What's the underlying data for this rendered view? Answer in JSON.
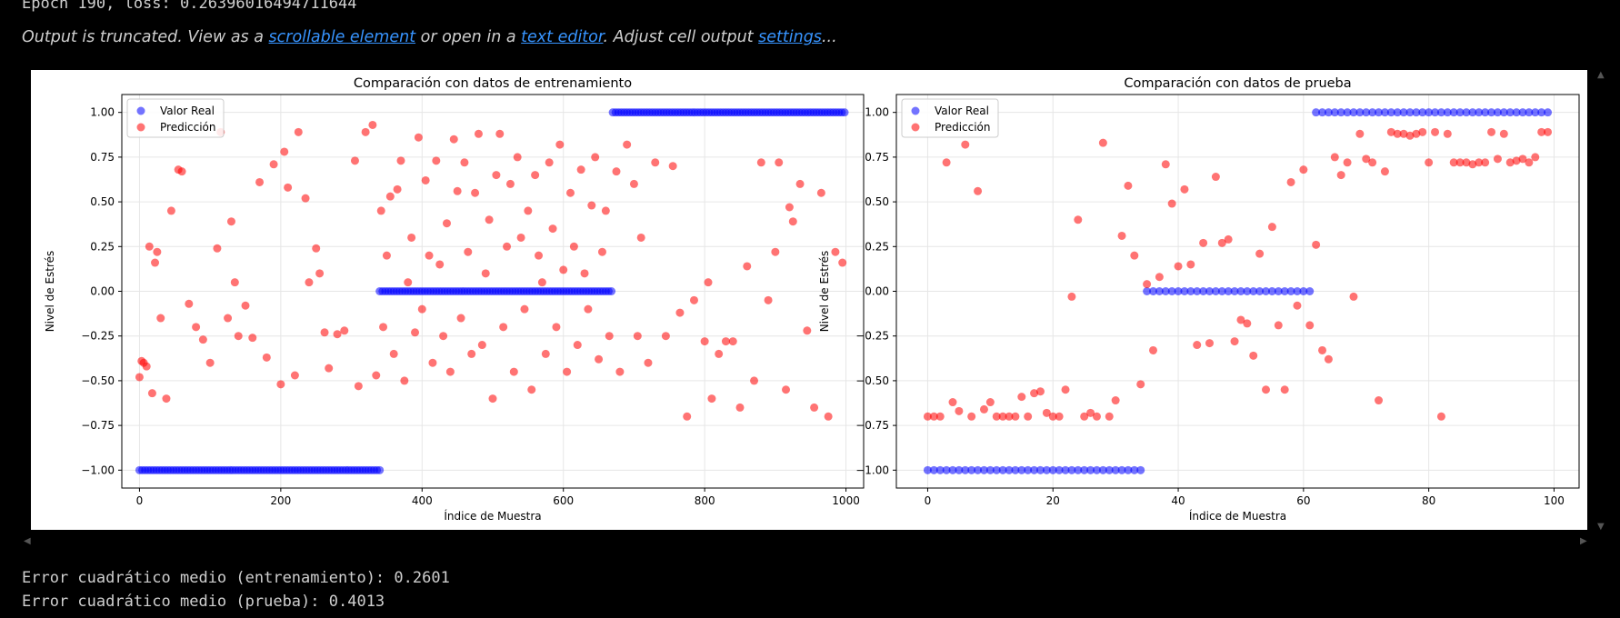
{
  "console": {
    "epoch_line": "Epoch 190, loss: 0.26396016494711644",
    "truncation": {
      "prefix": "Output is truncated. View as a ",
      "link1": "scrollable element",
      "middle1": " or open in a ",
      "link2": "text editor",
      "middle2": ". Adjust cell output ",
      "link3": "settings",
      "suffix": "..."
    },
    "mse_train": "Error cuadrático medio (entrenamiento): 0.2601",
    "mse_test": "Error cuadrático medio (prueba): 0.4013"
  },
  "colors": {
    "real": "#0000ff",
    "pred": "#ff0000",
    "link": "#3794ff"
  },
  "chart_data": [
    {
      "type": "scatter",
      "title": "Comparación con datos de entrenamiento",
      "xlabel": "Índice de Muestra",
      "ylabel": "Nivel de Estrés",
      "xlim": [
        -25,
        1025
      ],
      "ylim": [
        -1.1,
        1.1
      ],
      "xticks": [
        0,
        200,
        400,
        600,
        800,
        1000
      ],
      "yticks": [
        -1.0,
        -0.75,
        -0.5,
        -0.25,
        0.0,
        0.25,
        0.5,
        0.75,
        1.0
      ],
      "ytick_labels": [
        "−1.00",
        "−0.75",
        "−0.50",
        "−0.25",
        "0.00",
        "0.25",
        "0.50",
        "0.75",
        "1.00"
      ],
      "grid": true,
      "legend": "top-left",
      "series": [
        {
          "name": "Valor Real",
          "segments": [
            [
              0,
              340,
              -1.0
            ],
            [
              340,
              670,
              0.0
            ],
            [
              670,
              1000,
              1.0
            ]
          ]
        },
        {
          "name": "Predicción",
          "points": [
            [
              0,
              -0.48
            ],
            [
              3,
              -0.39
            ],
            [
              6,
              -0.4
            ],
            [
              10,
              -0.42
            ],
            [
              14,
              0.25
            ],
            [
              18,
              -0.57
            ],
            [
              22,
              0.16
            ],
            [
              25,
              0.22
            ],
            [
              30,
              -0.15
            ],
            [
              38,
              -0.6
            ],
            [
              45,
              0.45
            ],
            [
              55,
              0.68
            ],
            [
              60,
              0.67
            ],
            [
              70,
              -0.07
            ],
            [
              80,
              -0.2
            ],
            [
              90,
              -0.27
            ],
            [
              100,
              -0.4
            ],
            [
              110,
              0.24
            ],
            [
              115,
              0.89
            ],
            [
              125,
              -0.15
            ],
            [
              130,
              0.39
            ],
            [
              135,
              0.05
            ],
            [
              140,
              -0.25
            ],
            [
              150,
              -0.08
            ],
            [
              160,
              -0.26
            ],
            [
              170,
              0.61
            ],
            [
              180,
              -0.37
            ],
            [
              190,
              0.71
            ],
            [
              200,
              -0.52
            ],
            [
              205,
              0.78
            ],
            [
              210,
              0.58
            ],
            [
              220,
              -0.47
            ],
            [
              225,
              0.89
            ],
            [
              235,
              0.52
            ],
            [
              240,
              0.05
            ],
            [
              250,
              0.24
            ],
            [
              255,
              0.1
            ],
            [
              262,
              -0.23
            ],
            [
              268,
              -0.43
            ],
            [
              280,
              -0.24
            ],
            [
              290,
              -0.22
            ],
            [
              305,
              0.73
            ],
            [
              310,
              -0.53
            ],
            [
              320,
              0.89
            ],
            [
              330,
              0.93
            ],
            [
              335,
              -0.47
            ],
            [
              342,
              0.45
            ],
            [
              345,
              -0.2
            ],
            [
              350,
              0.2
            ],
            [
              355,
              0.53
            ],
            [
              360,
              -0.35
            ],
            [
              365,
              0.57
            ],
            [
              370,
              0.73
            ],
            [
              375,
              -0.5
            ],
            [
              380,
              0.05
            ],
            [
              385,
              0.3
            ],
            [
              390,
              -0.23
            ],
            [
              395,
              0.86
            ],
            [
              400,
              -0.1
            ],
            [
              405,
              0.62
            ],
            [
              410,
              0.2
            ],
            [
              415,
              -0.4
            ],
            [
              420,
              0.73
            ],
            [
              425,
              0.15
            ],
            [
              430,
              -0.25
            ],
            [
              435,
              0.38
            ],
            [
              440,
              -0.45
            ],
            [
              445,
              0.85
            ],
            [
              450,
              0.56
            ],
            [
              455,
              -0.15
            ],
            [
              460,
              0.72
            ],
            [
              465,
              0.22
            ],
            [
              470,
              -0.35
            ],
            [
              475,
              0.55
            ],
            [
              480,
              0.88
            ],
            [
              485,
              -0.3
            ],
            [
              490,
              0.1
            ],
            [
              495,
              0.4
            ],
            [
              500,
              -0.6
            ],
            [
              505,
              0.65
            ],
            [
              510,
              0.88
            ],
            [
              515,
              -0.2
            ],
            [
              520,
              0.25
            ],
            [
              525,
              0.6
            ],
            [
              530,
              -0.45
            ],
            [
              535,
              0.75
            ],
            [
              540,
              0.3
            ],
            [
              545,
              -0.1
            ],
            [
              550,
              0.45
            ],
            [
              555,
              -0.55
            ],
            [
              560,
              0.65
            ],
            [
              565,
              0.2
            ],
            [
              570,
              0.05
            ],
            [
              575,
              -0.35
            ],
            [
              580,
              0.72
            ],
            [
              585,
              0.35
            ],
            [
              590,
              -0.2
            ],
            [
              595,
              0.82
            ],
            [
              600,
              0.12
            ],
            [
              605,
              -0.45
            ],
            [
              610,
              0.55
            ],
            [
              615,
              0.25
            ],
            [
              620,
              -0.3
            ],
            [
              625,
              0.68
            ],
            [
              630,
              0.1
            ],
            [
              635,
              -0.1
            ],
            [
              640,
              0.48
            ],
            [
              645,
              0.75
            ],
            [
              650,
              -0.38
            ],
            [
              655,
              0.22
            ],
            [
              660,
              0.45
            ],
            [
              665,
              -0.25
            ],
            [
              675,
              0.67
            ],
            [
              680,
              -0.45
            ],
            [
              690,
              0.82
            ],
            [
              700,
              0.6
            ],
            [
              705,
              -0.25
            ],
            [
              710,
              0.3
            ],
            [
              720,
              -0.4
            ],
            [
              730,
              0.72
            ],
            [
              745,
              -0.25
            ],
            [
              755,
              0.7
            ],
            [
              765,
              -0.12
            ],
            [
              775,
              -0.7
            ],
            [
              785,
              -0.05
            ],
            [
              800,
              -0.28
            ],
            [
              805,
              0.05
            ],
            [
              810,
              -0.6
            ],
            [
              820,
              -0.35
            ],
            [
              830,
              -0.28
            ],
            [
              840,
              -0.28
            ],
            [
              850,
              -0.65
            ],
            [
              860,
              0.14
            ],
            [
              870,
              -0.5
            ],
            [
              880,
              0.72
            ],
            [
              890,
              -0.05
            ],
            [
              900,
              0.22
            ],
            [
              905,
              0.72
            ],
            [
              915,
              -0.55
            ],
            [
              920,
              0.47
            ],
            [
              925,
              0.39
            ],
            [
              935,
              0.6
            ],
            [
              945,
              -0.22
            ],
            [
              955,
              -0.65
            ],
            [
              965,
              0.55
            ],
            [
              975,
              -0.7
            ],
            [
              985,
              0.22
            ],
            [
              995,
              0.16
            ]
          ]
        }
      ]
    },
    {
      "type": "scatter",
      "title": "Comparación con datos de prueba",
      "xlabel": "Índice de Muestra",
      "ylabel": "Nivel de Estrés",
      "xlim": [
        -5,
        104
      ],
      "ylim": [
        -1.1,
        1.1
      ],
      "xticks": [
        0,
        20,
        40,
        60,
        80,
        100
      ],
      "yticks": [
        -1.0,
        -0.75,
        -0.5,
        -0.25,
        0.0,
        0.25,
        0.5,
        0.75,
        1.0
      ],
      "ytick_labels": [
        "−1.00",
        "−0.75",
        "−0.50",
        "−0.25",
        "0.00",
        "0.25",
        "0.50",
        "0.75",
        "1.00"
      ],
      "grid": true,
      "legend": "top-left",
      "series": [
        {
          "name": "Valor Real",
          "segments": [
            [
              0,
              34,
              -1.0
            ],
            [
              35,
              61,
              0.0
            ],
            [
              62,
              99,
              1.0
            ]
          ]
        },
        {
          "name": "Predicción",
          "points": [
            [
              0,
              -0.7
            ],
            [
              1,
              -0.7
            ],
            [
              2,
              -0.7
            ],
            [
              3,
              0.72
            ],
            [
              4,
              -0.62
            ],
            [
              5,
              -0.67
            ],
            [
              6,
              0.82
            ],
            [
              7,
              -0.7
            ],
            [
              8,
              0.56
            ],
            [
              9,
              -0.66
            ],
            [
              10,
              -0.62
            ],
            [
              11,
              -0.7
            ],
            [
              12,
              -0.7
            ],
            [
              13,
              -0.7
            ],
            [
              14,
              -0.7
            ],
            [
              15,
              -0.59
            ],
            [
              16,
              -0.7
            ],
            [
              17,
              -0.57
            ],
            [
              18,
              -0.56
            ],
            [
              19,
              -0.68
            ],
            [
              20,
              -0.7
            ],
            [
              21,
              -0.7
            ],
            [
              22,
              -0.55
            ],
            [
              23,
              -0.03
            ],
            [
              24,
              0.4
            ],
            [
              25,
              -0.7
            ],
            [
              26,
              -0.68
            ],
            [
              27,
              -0.7
            ],
            [
              28,
              0.83
            ],
            [
              29,
              -0.7
            ],
            [
              30,
              -0.61
            ],
            [
              31,
              0.31
            ],
            [
              32,
              0.59
            ],
            [
              33,
              0.2
            ],
            [
              34,
              -0.52
            ],
            [
              35,
              0.04
            ],
            [
              36,
              -0.33
            ],
            [
              37,
              0.08
            ],
            [
              38,
              0.71
            ],
            [
              39,
              0.49
            ],
            [
              40,
              0.14
            ],
            [
              41,
              0.57
            ],
            [
              42,
              0.15
            ],
            [
              43,
              -0.3
            ],
            [
              44,
              0.27
            ],
            [
              45,
              -0.29
            ],
            [
              46,
              0.64
            ],
            [
              47,
              0.27
            ],
            [
              48,
              0.29
            ],
            [
              49,
              -0.28
            ],
            [
              50,
              -0.16
            ],
            [
              51,
              -0.18
            ],
            [
              52,
              -0.36
            ],
            [
              53,
              0.21
            ],
            [
              54,
              -0.55
            ],
            [
              55,
              0.36
            ],
            [
              56,
              -0.19
            ],
            [
              57,
              -0.55
            ],
            [
              58,
              0.61
            ],
            [
              59,
              -0.08
            ],
            [
              60,
              0.68
            ],
            [
              61,
              -0.19
            ],
            [
              62,
              0.26
            ],
            [
              63,
              -0.33
            ],
            [
              64,
              -0.38
            ],
            [
              65,
              0.75
            ],
            [
              66,
              0.65
            ],
            [
              67,
              0.72
            ],
            [
              68,
              -0.03
            ],
            [
              69,
              0.88
            ],
            [
              70,
              0.74
            ],
            [
              71,
              0.72
            ],
            [
              72,
              -0.61
            ],
            [
              73,
              0.67
            ],
            [
              74,
              0.89
            ],
            [
              75,
              0.88
            ],
            [
              76,
              0.88
            ],
            [
              77,
              0.87
            ],
            [
              78,
              0.88
            ],
            [
              79,
              0.89
            ],
            [
              80,
              0.72
            ],
            [
              81,
              0.89
            ],
            [
              82,
              -0.7
            ],
            [
              83,
              0.88
            ],
            [
              84,
              0.72
            ],
            [
              85,
              0.72
            ],
            [
              86,
              0.72
            ],
            [
              87,
              0.71
            ],
            [
              88,
              0.72
            ],
            [
              89,
              0.72
            ],
            [
              90,
              0.89
            ],
            [
              91,
              0.74
            ],
            [
              92,
              0.88
            ],
            [
              93,
              0.72
            ],
            [
              94,
              0.73
            ],
            [
              95,
              0.74
            ],
            [
              96,
              0.72
            ],
            [
              97,
              0.75
            ],
            [
              98,
              0.89
            ],
            [
              99,
              0.89
            ]
          ]
        }
      ]
    }
  ]
}
